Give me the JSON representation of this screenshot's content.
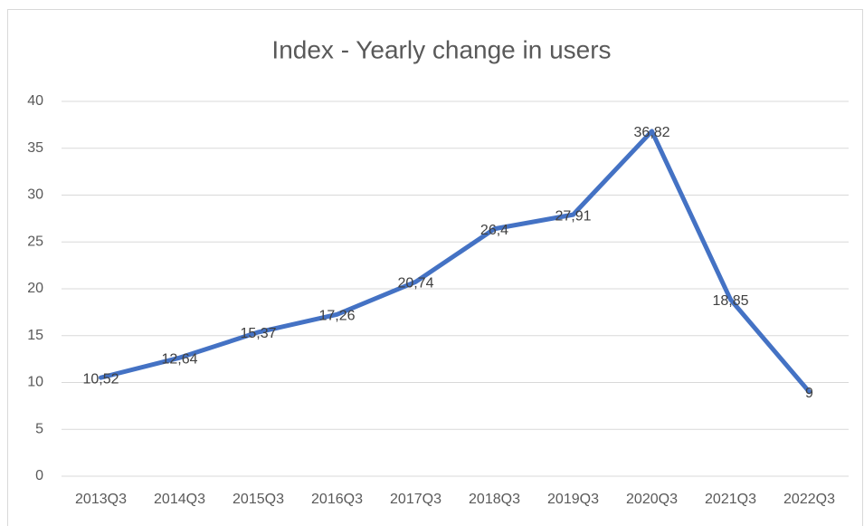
{
  "chart_data": {
    "type": "line",
    "title": "Index - Yearly change in users",
    "categories": [
      "2013Q3",
      "2014Q3",
      "2015Q3",
      "2016Q3",
      "2017Q3",
      "2018Q3",
      "2019Q3",
      "2020Q3",
      "2021Q3",
      "2022Q3"
    ],
    "series": [
      {
        "name": "Index",
        "color": "#4472c4",
        "values": [
          10.52,
          12.64,
          15.37,
          17.26,
          20.74,
          26.4,
          27.91,
          36.82,
          18.85,
          9
        ],
        "value_labels": [
          "10,52",
          "12,64",
          "15,37",
          "17,26",
          "20,74",
          "26,4",
          "27,91",
          "36,82",
          "18,85",
          "9"
        ]
      }
    ],
    "ylim": [
      0,
      40
    ],
    "yticks": [
      0,
      5,
      10,
      15,
      20,
      25,
      30,
      35,
      40
    ],
    "grid": true
  }
}
